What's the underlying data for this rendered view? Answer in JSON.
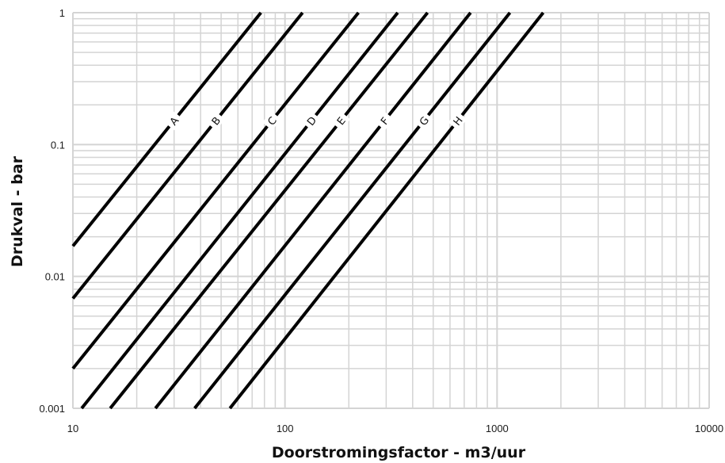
{
  "chart_data": {
    "type": "line",
    "xlabel": "Doorstromingsfactor - m3/uur",
    "ylabel": "Drukval - bar",
    "x_scale": "log",
    "y_scale": "log",
    "xlim": [
      10,
      10000
    ],
    "ylim": [
      0.001,
      1
    ],
    "x_ticks": [
      "10",
      "100",
      "1000",
      "10000"
    ],
    "y_ticks": [
      "0.001",
      "0.01",
      "0.1",
      "1"
    ],
    "grid": true,
    "line_color": "#000000",
    "grid_color": "#d4d4d4",
    "series": [
      {
        "name": "A",
        "x": [
          10,
          77
        ],
        "y": [
          0.017,
          1
        ]
      },
      {
        "name": "B",
        "x": [
          10,
          121
        ],
        "y": [
          0.0068,
          1
        ]
      },
      {
        "name": "C",
        "x": [
          10,
          222
        ],
        "y": [
          0.002,
          1
        ]
      },
      {
        "name": "D",
        "x": [
          11,
          340
        ],
        "y": [
          0.001,
          1
        ]
      },
      {
        "name": "E",
        "x": [
          15,
          470
        ],
        "y": [
          0.001,
          1
        ]
      },
      {
        "name": "F",
        "x": [
          24.5,
          750
        ],
        "y": [
          0.001,
          1
        ]
      },
      {
        "name": "G",
        "x": [
          37.5,
          1150
        ],
        "y": [
          0.001,
          1
        ]
      },
      {
        "name": "H",
        "x": [
          55,
          1650
        ],
        "y": [
          0.001,
          1
        ]
      }
    ]
  }
}
